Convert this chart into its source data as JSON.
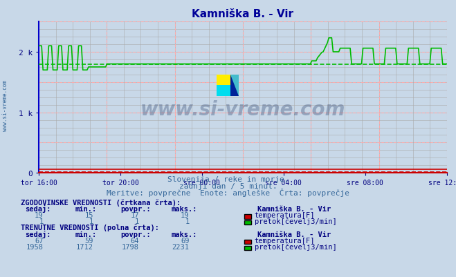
{
  "title": "Kamniška B. - Vir",
  "title_color": "#000099",
  "bg_color": "#c8d8e8",
  "plot_bg_color": "#c8d8e8",
  "fig_bg_color": "#c8d8e8",
  "ymax": 2500,
  "ytick_labels": [
    "0",
    "1 k",
    "2 k"
  ],
  "xtick_labels": [
    "tor 16:00",
    "tor 20:00",
    "sre 00:00",
    "sre 04:00",
    "sre 08:00",
    "sre 12:00"
  ],
  "n_points": 288,
  "flow_color": "#00bb00",
  "temp_color": "#cc0000",
  "avg_flow": 1798,
  "avg_temp": 17,
  "subtitle1": "Slovenija / reke in morje.",
  "subtitle2": "zadnji dan / 5 minut.",
  "subtitle3": "Meritve: povprečne  Enote: angleške  Črta: povprečje",
  "subtitle_color": "#336699",
  "table_header1": "ZGODOVINSKE VREDNOSTI (črtkana črta):",
  "table_header2": "TRENUTNE VREDNOSTI (polna črta):",
  "table_color": "#000080",
  "col_headers": [
    "sedaj:",
    "min.:",
    "povpr.:",
    "maks.:"
  ],
  "hist_temp": [
    19,
    15,
    17,
    19
  ],
  "hist_flow": [
    1,
    1,
    1,
    1
  ],
  "curr_temp": [
    67,
    59,
    64,
    69
  ],
  "curr_flow": [
    1958,
    1712,
    1798,
    2231
  ],
  "legend_station": "Kamniška B. - Vir",
  "label_temp": "temperatura[F]",
  "label_flow": "pretok[čevelj3/min]",
  "watermark": "www.si-vreme.com",
  "side_watermark": "www.si-vreme.com"
}
